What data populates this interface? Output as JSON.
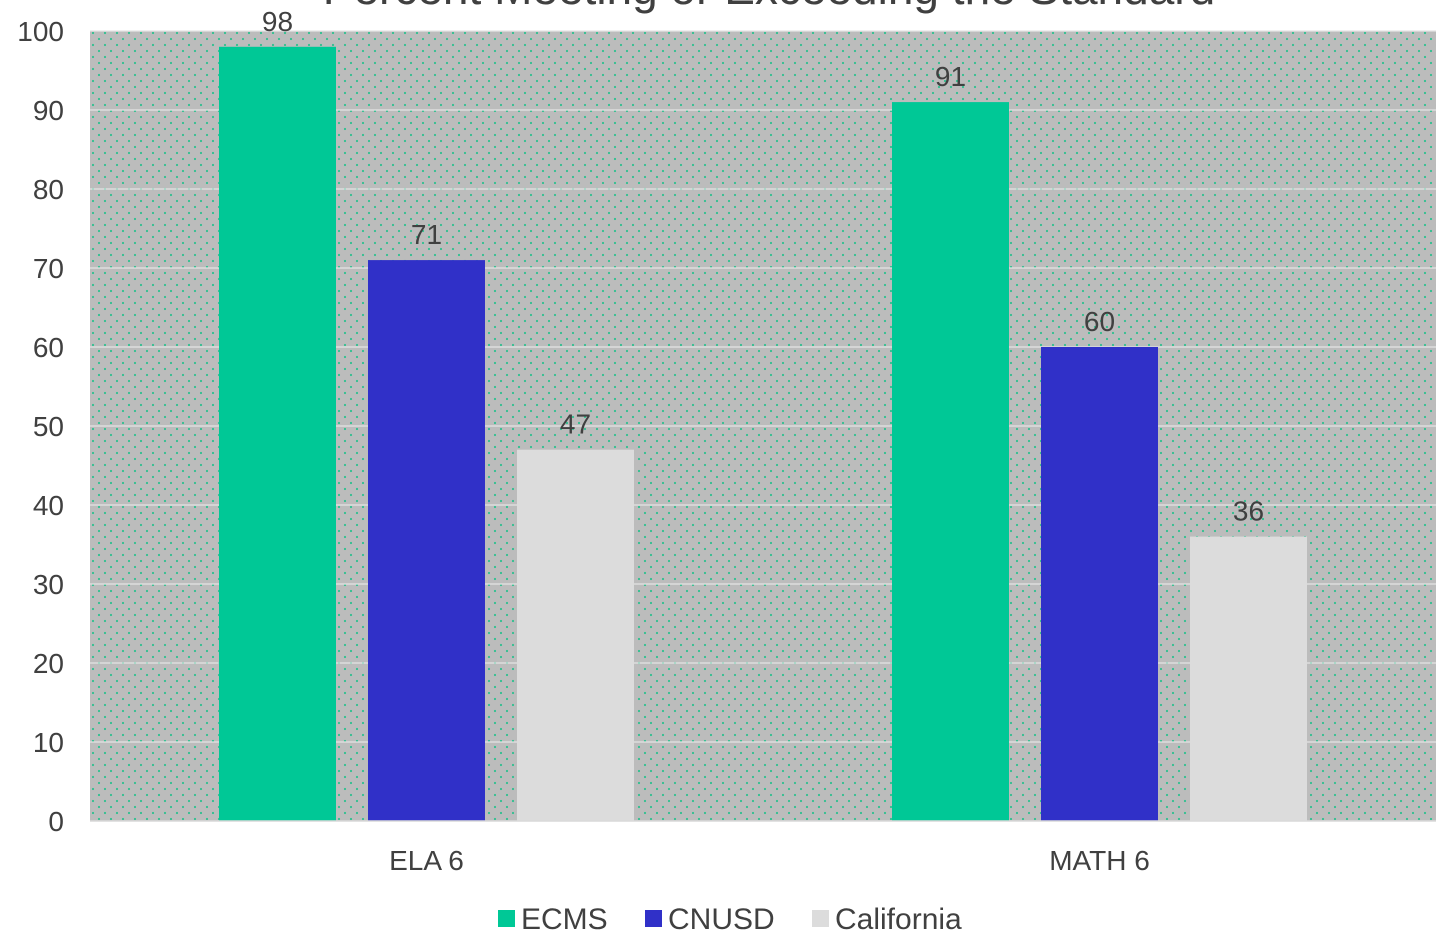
{
  "chart_data": {
    "type": "bar",
    "title": "Percent Meeting or Exceeding the Standard",
    "categories": [
      "ELA 6",
      "MATH 6"
    ],
    "series": [
      {
        "name": "ECMS",
        "values": [
          98,
          91
        ],
        "color": "#00c896"
      },
      {
        "name": "CNUSD",
        "values": [
          71,
          60
        ],
        "color": "#3030c8"
      },
      {
        "name": "California",
        "values": [
          47,
          36
        ],
        "color": "#dcdcdc"
      }
    ],
    "ylim": [
      0,
      100
    ],
    "y_ticks": [
      0,
      10,
      20,
      30,
      40,
      50,
      60,
      70,
      80,
      90,
      100
    ],
    "xlabel": "",
    "ylabel": "",
    "grid": true,
    "plot_background": "#bcbcbc",
    "dot_color": "#2fbf8f",
    "gridline_color": "#e4e4e4",
    "legend_position": "bottom"
  }
}
